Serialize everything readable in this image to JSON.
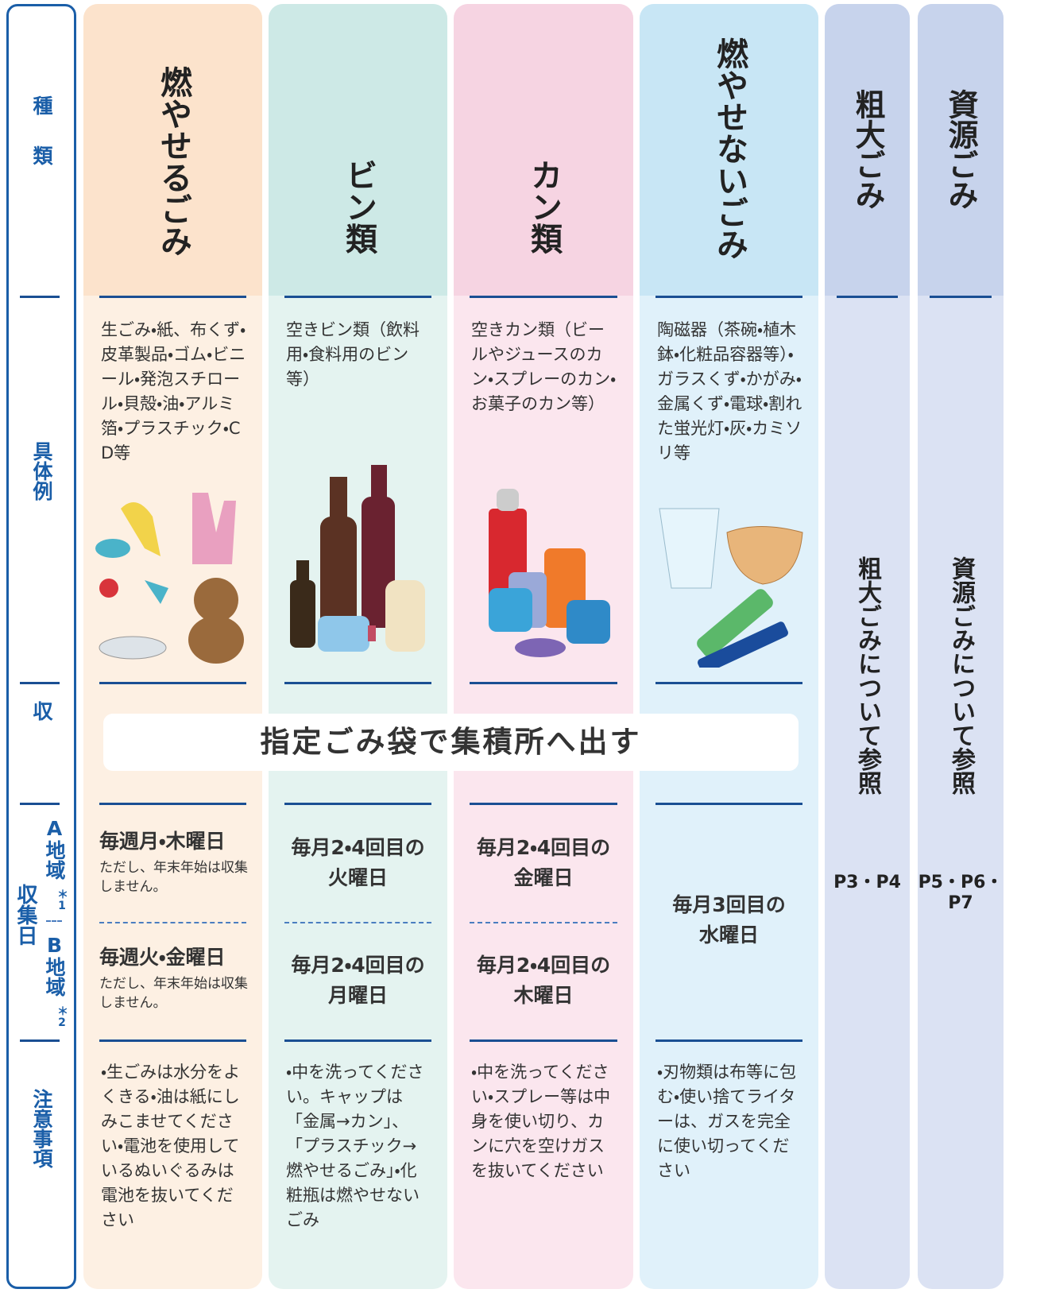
{
  "side_labels": {
    "type": "種類",
    "examples": "具体例",
    "collection": "収集",
    "schedule": "収集日",
    "area_a": "A地域",
    "area_a_note": "＊1",
    "area_b": "B地域",
    "area_b_note": "＊2",
    "notes": "注意事項"
  },
  "banner": "指定ごみ袋で集積所へ出す",
  "columns": [
    {
      "name": "燃やせるごみ",
      "examples": "生ごみ・紙、布くず・皮革製品・ゴム・ビニール・発泡スチロール・貝殻・油・アルミ箔・プラスチック・CD等",
      "schedule_a": "毎週月・木曜日",
      "schedule_a_note": "ただし、年末年始は収集しません。",
      "schedule_b": "毎週火・金曜日",
      "schedule_b_note": "ただし、年末年始は収集しません。",
      "notes": "・生ごみは水分をよくきる・油は紙にしみこませてください・電池を使用しているぬいぐるみは電池を抜いてください"
    },
    {
      "name": "ビン類",
      "examples": "空きビン類（飲料用・食料用のビン等）",
      "schedule_a": "毎月2・4回目の\n火曜日",
      "schedule_b": "毎月2・4回目の\n月曜日",
      "notes": "・中を洗ってください。キャップは「金属→カン」、「プラスチック→燃やせるごみ」・化粧瓶は燃やせないごみ"
    },
    {
      "name": "カン類",
      "examples": "空きカン類（ビールやジュースのカン・スプレーのカン・お菓子のカン等）",
      "schedule_a": "毎月2・4回目の\n金曜日",
      "schedule_b": "毎月2・4回目の\n木曜日",
      "notes": "・中を洗ってください・スプレー等は中身を使い切り、カンに穴を空けガスを抜いてください"
    },
    {
      "name": "燃やせないごみ",
      "examples": "陶磁器（茶碗・植木鉢・化粧品容器等）・ガラスくず・かがみ・金属くず・電球・割れた蛍光灯・灰・カミソリ等",
      "schedule": "毎月3回目の\n水曜日",
      "notes": "・刃物類は布等に包む・使い捨てライターは、ガスを完全に使い切ってください"
    }
  ],
  "other_columns": [
    {
      "name": "粗大ごみ",
      "reference": "粗大ごみについて参照",
      "pages": "P3・P4"
    },
    {
      "name": "資源ごみ",
      "reference": "資源ごみについて参照",
      "pages": "P5・P6・P7"
    }
  ]
}
